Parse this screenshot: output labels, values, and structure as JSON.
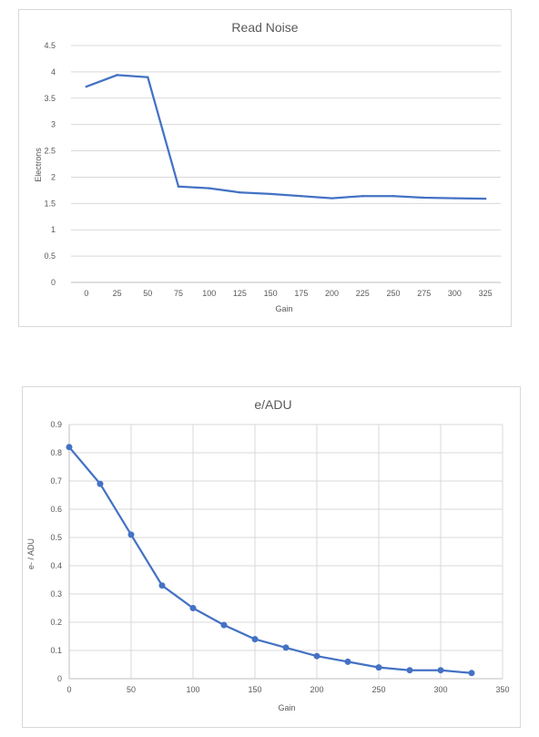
{
  "chart_data": [
    {
      "type": "line",
      "title": "Read Noise",
      "xlabel": "Gain",
      "ylabel": "Electrons",
      "categories": [
        "0",
        "25",
        "50",
        "75",
        "100",
        "125",
        "150",
        "175",
        "200",
        "225",
        "250",
        "275",
        "300",
        "325"
      ],
      "values": [
        3.72,
        3.94,
        3.9,
        1.82,
        1.79,
        1.71,
        1.68,
        1.64,
        1.6,
        1.64,
        1.64,
        1.61,
        1.6,
        1.59
      ],
      "yticks": [
        "0",
        "0.5",
        "1",
        "1.5",
        "2",
        "2.5",
        "3",
        "3.5",
        "4",
        "4.5"
      ],
      "ylim": [
        0,
        4.5
      ],
      "grid": "horizontal",
      "markers": false,
      "color": "#4472c4"
    },
    {
      "type": "scatter",
      "title": "e/ADU",
      "xlabel": "Gain",
      "ylabel": "e- / ADU",
      "x": [
        0,
        25,
        50,
        75,
        100,
        125,
        150,
        175,
        200,
        225,
        250,
        275,
        300,
        325
      ],
      "y": [
        0.82,
        0.69,
        0.51,
        0.33,
        0.25,
        0.19,
        0.14,
        0.11,
        0.08,
        0.06,
        0.04,
        0.03,
        0.03,
        0.02
      ],
      "xticks": [
        "0",
        "50",
        "100",
        "150",
        "200",
        "250",
        "300",
        "350"
      ],
      "yticks": [
        "0",
        "0.1",
        "0.2",
        "0.3",
        "0.4",
        "0.5",
        "0.6",
        "0.7",
        "0.8",
        "0.9"
      ],
      "xlim": [
        0,
        350
      ],
      "ylim": [
        0,
        0.9
      ],
      "grid": "both",
      "markers": true,
      "color": "#4472c4"
    }
  ]
}
